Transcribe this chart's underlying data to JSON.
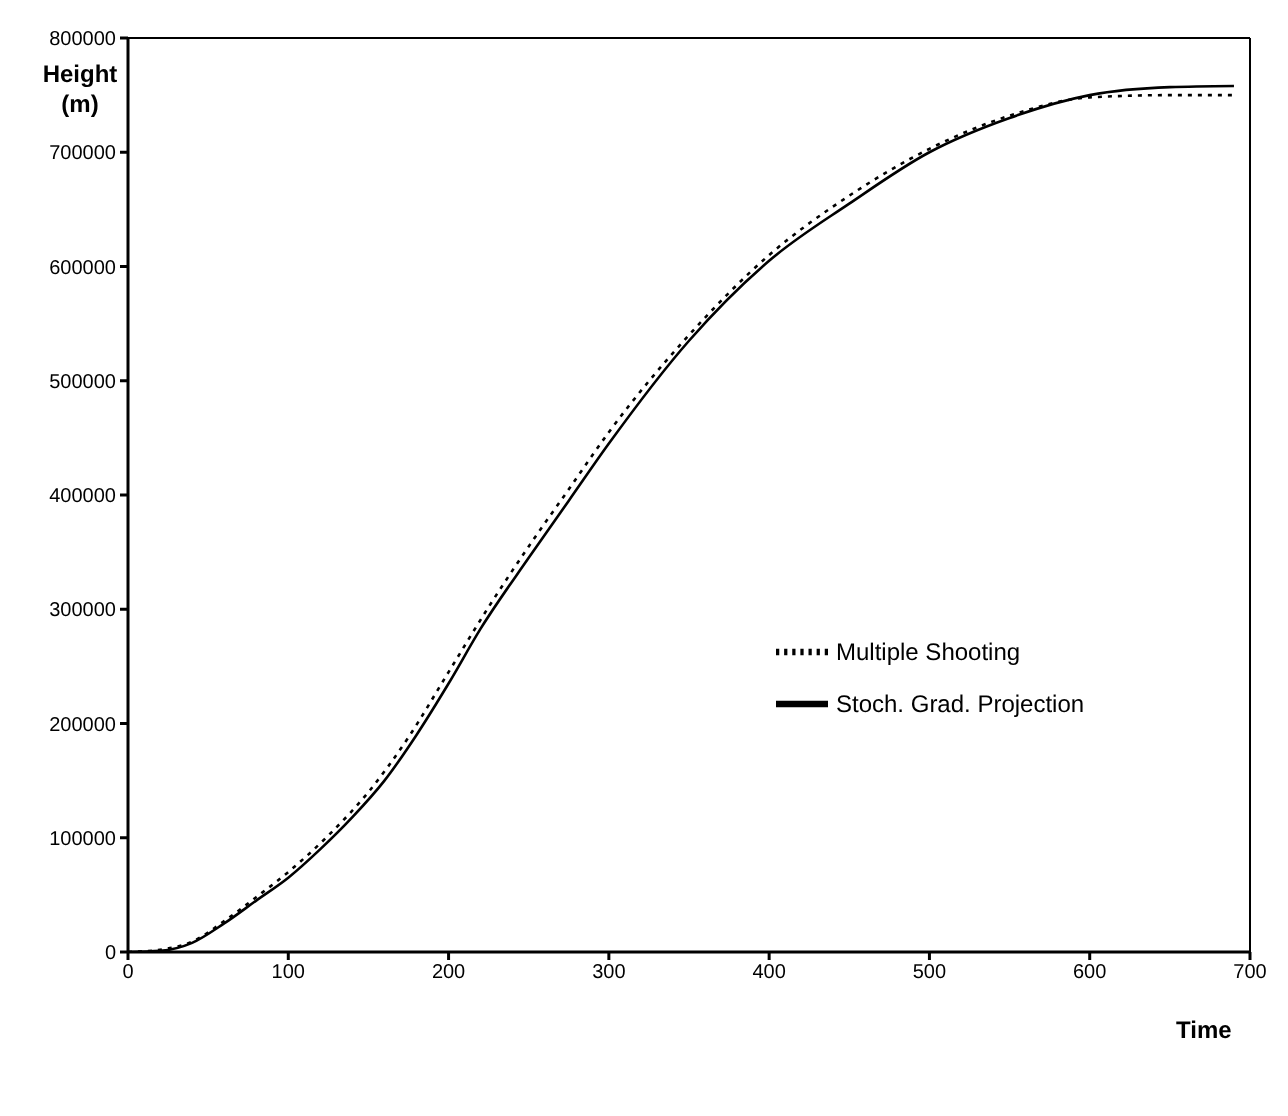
{
  "chart_data": {
    "type": "line",
    "xlabel": "Time",
    "ylabel": "Height (m)",
    "xlim": [
      0,
      700
    ],
    "xticks": [
      0,
      100,
      200,
      300,
      400,
      500,
      600,
      700
    ],
    "ylim": [
      0,
      800000
    ],
    "yticks": [
      0,
      100000,
      200000,
      300000,
      400000,
      500000,
      600000,
      700000,
      800000
    ],
    "legend": "right",
    "marker": "none",
    "series": [
      {
        "name": "Multiple Shooting",
        "color": "#000000",
        "line_style": "dotted",
        "x": [
          0,
          20,
          40,
          60,
          80,
          100,
          125,
          150,
          175,
          200,
          225,
          250,
          275,
          300,
          350,
          400,
          450,
          500,
          550,
          600,
          650,
          690
        ],
        "values": [
          0,
          2000,
          9000,
          27000,
          48000,
          70000,
          102000,
          140000,
          188000,
          245000,
          302000,
          355000,
          405000,
          455000,
          540000,
          610000,
          662000,
          703000,
          732000,
          748000,
          750000,
          750000
        ]
      },
      {
        "name": "Stoch. Grad. Projection",
        "color": "#000000",
        "line_style": "solid",
        "x": [
          0,
          20,
          40,
          60,
          80,
          100,
          120,
          140,
          160,
          180,
          200,
          220,
          250,
          275,
          300,
          350,
          400,
          450,
          500,
          550,
          600,
          650,
          690
        ],
        "values": [
          0,
          1000,
          8000,
          25000,
          45000,
          65000,
          90000,
          118000,
          150000,
          190000,
          235000,
          283000,
          345000,
          395000,
          445000,
          535000,
          605000,
          655000,
          700000,
          730000,
          750000,
          757000,
          758000
        ]
      }
    ]
  }
}
